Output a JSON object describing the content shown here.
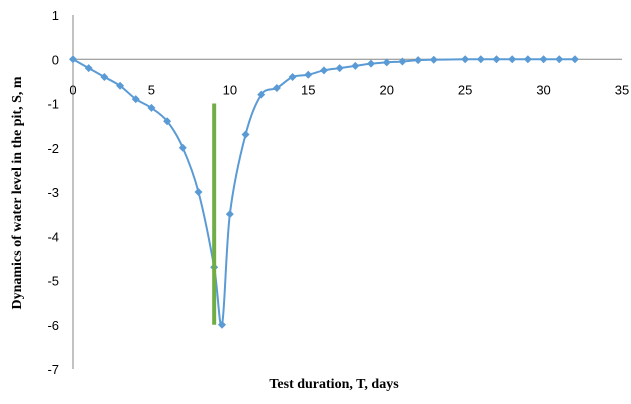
{
  "chart_data": {
    "type": "scatter",
    "xlabel": "Test duration, T, days",
    "ylabel": "Dynamics of water level in the pit, S, m",
    "xlim": [
      0,
      35
    ],
    "ylim": [
      -7,
      1
    ],
    "x_ticks": [
      "0",
      "5",
      "10",
      "15",
      "20",
      "25",
      "30",
      "35"
    ],
    "y_ticks": [
      "1",
      "0",
      "-1",
      "-2",
      "-3",
      "-4",
      "-5",
      "-6",
      "-7"
    ],
    "grid": false,
    "legend": "none",
    "series": [
      {
        "style": "smooth line with diamond markers",
        "color": "#5b9bd5",
        "points": [
          [
            0,
            0
          ],
          [
            1,
            -0.2
          ],
          [
            2,
            -0.4
          ],
          [
            3,
            -0.6
          ],
          [
            4,
            -0.9
          ],
          [
            5,
            -1.1
          ],
          [
            6,
            -1.4
          ],
          [
            7,
            -2.0
          ],
          [
            8,
            -3.0
          ],
          [
            9,
            -4.7
          ],
          [
            9.5,
            -6.0
          ],
          [
            10,
            -3.5
          ],
          [
            11,
            -1.7
          ],
          [
            12,
            -0.8
          ],
          [
            13,
            -0.65
          ],
          [
            14,
            -0.4
          ],
          [
            15,
            -0.35
          ],
          [
            16,
            -0.25
          ],
          [
            17,
            -0.2
          ],
          [
            18,
            -0.15
          ],
          [
            19,
            -0.1
          ],
          [
            20,
            -0.07
          ],
          [
            21,
            -0.05
          ],
          [
            22,
            -0.02
          ],
          [
            23,
            -0.01
          ],
          [
            25,
            0
          ],
          [
            26,
            0
          ],
          [
            27,
            0
          ],
          [
            28,
            0
          ],
          [
            29,
            0
          ],
          [
            30,
            0
          ],
          [
            31,
            0
          ],
          [
            32,
            0
          ]
        ]
      }
    ],
    "annotations": [
      {
        "type": "vertical_line",
        "x": 9,
        "y_from": -1,
        "y_to": -6,
        "color": "#70ad47"
      }
    ]
  }
}
